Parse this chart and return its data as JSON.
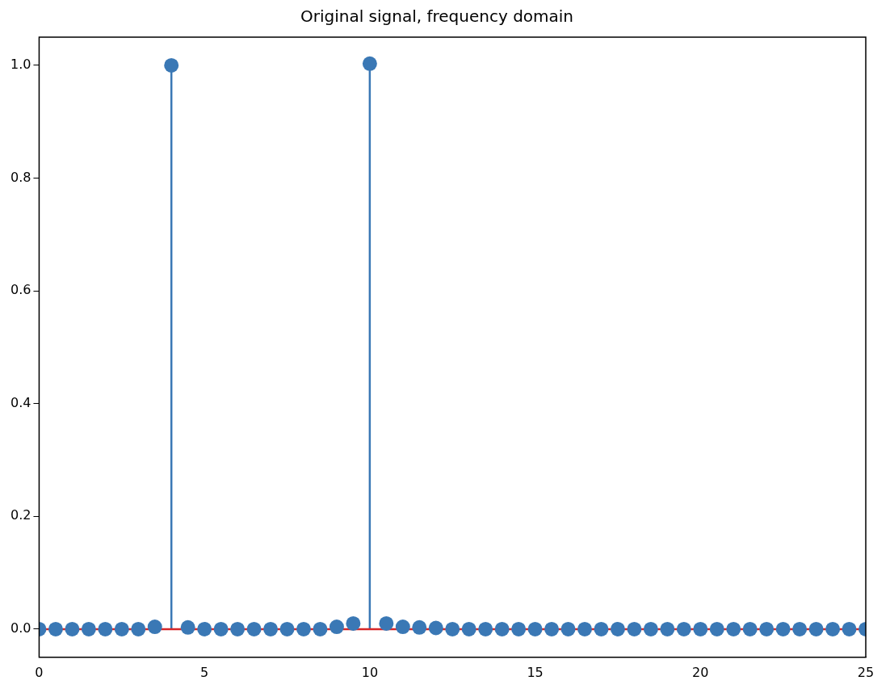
{
  "chart_data": {
    "type": "lollipop",
    "title": "Original signal, frequency domain",
    "x": [
      0,
      0.5,
      1,
      1.5,
      2,
      2.5,
      3,
      3.5,
      4,
      4.5,
      5,
      5.5,
      6,
      6.5,
      7,
      7.5,
      8,
      8.5,
      9,
      9.5,
      10,
      10.5,
      11,
      11.5,
      12,
      12.5,
      13,
      13.5,
      14,
      14.5,
      15,
      15.5,
      16,
      16.5,
      17,
      17.5,
      18,
      18.5,
      19,
      19.5,
      20,
      20.5,
      21,
      21.5,
      22,
      22.5,
      23,
      23.5,
      24,
      24.5,
      25
    ],
    "series": [
      {
        "color": "#3a78b5",
        "values": [
          0,
          0,
          0,
          0,
          0,
          0,
          0,
          0.004,
          1.0,
          0.003,
          0,
          0,
          0,
          0,
          0,
          0,
          0,
          0,
          0.004,
          0.01,
          1.003,
          0.01,
          0.004,
          0.003,
          0.002,
          0,
          0,
          0,
          0,
          0,
          0,
          0,
          0,
          0,
          0,
          0,
          0,
          0,
          0,
          0,
          0,
          0,
          0,
          0,
          0,
          0,
          0,
          0,
          0,
          0,
          0
        ]
      }
    ],
    "xlim": [
      0,
      25
    ],
    "xticks": [
      0,
      5,
      10,
      15,
      20,
      25
    ],
    "ylim": [
      -0.05,
      1.05
    ],
    "yticks": [
      {
        "value": 0,
        "label": "0.0"
      },
      {
        "value": 0.2,
        "label": "0.2"
      },
      {
        "value": 0.4,
        "label": "0.4"
      },
      {
        "value": 0.6,
        "label": "0.6"
      },
      {
        "value": 0.8,
        "label": "0.8"
      },
      {
        "value": 1,
        "label": "1.0"
      }
    ],
    "ref_lines": [
      {
        "axis": "y",
        "value": 0,
        "color": "#d62728"
      }
    ],
    "marker": "circle",
    "grid": false,
    "legend": false
  }
}
